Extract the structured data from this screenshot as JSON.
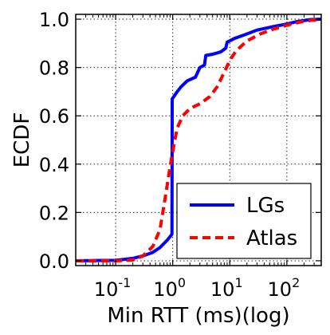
{
  "chart_data": {
    "type": "line",
    "xlabel": "Min RTT (ms)(log)",
    "ylabel": "ECDF",
    "xscale": "log",
    "xlim": [
      0.02,
      400
    ],
    "ylim": [
      -0.02,
      1.02
    ],
    "grid": true,
    "legend_position": "bottom-right",
    "x_ticks": [
      {
        "value": 0.1,
        "base": "10",
        "exp": "-1"
      },
      {
        "value": 1,
        "base": "10",
        "exp": "0"
      },
      {
        "value": 10,
        "base": "10",
        "exp": "1"
      },
      {
        "value": 100,
        "base": "10",
        "exp": "2"
      }
    ],
    "y_ticks": [
      {
        "value": 0.0,
        "label": "0.0"
      },
      {
        "value": 0.2,
        "label": "0.2"
      },
      {
        "value": 0.4,
        "label": "0.4"
      },
      {
        "value": 0.6,
        "label": "0.6"
      },
      {
        "value": 0.8,
        "label": "0.8"
      },
      {
        "value": 1.0,
        "label": "1.0"
      }
    ],
    "series": [
      {
        "name": "LGs",
        "color": "#0000ff",
        "style": "solid",
        "points": [
          [
            0.02,
            0.0
          ],
          [
            0.1,
            0.002
          ],
          [
            0.2,
            0.01
          ],
          [
            0.3,
            0.02
          ],
          [
            0.45,
            0.035
          ],
          [
            0.6,
            0.055
          ],
          [
            0.8,
            0.085
          ],
          [
            0.97,
            0.11
          ],
          [
            0.98,
            0.67
          ],
          [
            1.05,
            0.68
          ],
          [
            1.2,
            0.7
          ],
          [
            1.4,
            0.72
          ],
          [
            1.8,
            0.745
          ],
          [
            2.5,
            0.76
          ],
          [
            3.0,
            0.8
          ],
          [
            3.6,
            0.81
          ],
          [
            3.8,
            0.85
          ],
          [
            5.0,
            0.855
          ],
          [
            6.0,
            0.86
          ],
          [
            7.0,
            0.865
          ],
          [
            8.5,
            0.88
          ],
          [
            9.0,
            0.905
          ],
          [
            12,
            0.92
          ],
          [
            18,
            0.935
          ],
          [
            30,
            0.955
          ],
          [
            60,
            0.97
          ],
          [
            100,
            0.98
          ],
          [
            150,
            0.99
          ],
          [
            250,
            0.998
          ],
          [
            400,
            1.0
          ]
        ]
      },
      {
        "name": "Atlas",
        "color": "#ff0000",
        "style": "dashed",
        "points": [
          [
            0.02,
            0.0
          ],
          [
            0.1,
            0.0
          ],
          [
            0.2,
            0.003
          ],
          [
            0.3,
            0.02
          ],
          [
            0.45,
            0.06
          ],
          [
            0.6,
            0.13
          ],
          [
            0.75,
            0.27
          ],
          [
            0.9,
            0.39
          ],
          [
            1.05,
            0.48
          ],
          [
            1.2,
            0.55
          ],
          [
            1.5,
            0.6
          ],
          [
            2.0,
            0.63
          ],
          [
            3.0,
            0.65
          ],
          [
            4.5,
            0.68
          ],
          [
            6.0,
            0.72
          ],
          [
            8.0,
            0.78
          ],
          [
            10,
            0.83
          ],
          [
            13,
            0.87
          ],
          [
            20,
            0.91
          ],
          [
            35,
            0.94
          ],
          [
            60,
            0.96
          ],
          [
            100,
            0.975
          ],
          [
            200,
            0.992
          ],
          [
            400,
            1.0
          ]
        ]
      }
    ]
  }
}
